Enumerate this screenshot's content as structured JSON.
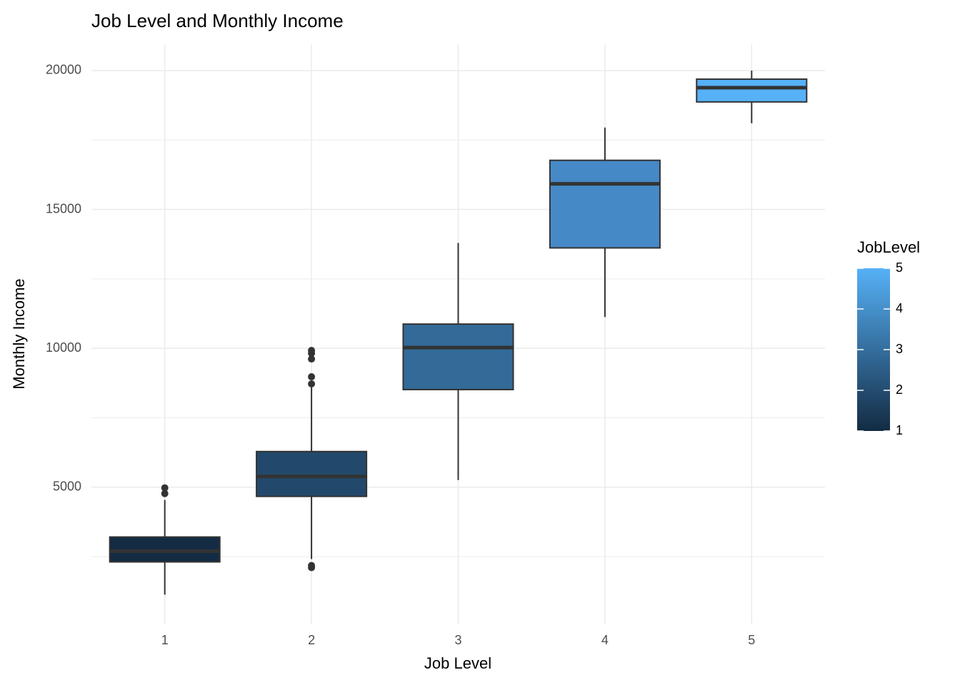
{
  "chart_data": {
    "type": "box",
    "title": "Job Level and Monthly Income",
    "x_label": "Job Level",
    "y_label": "Monthly Income",
    "categories": [
      "1",
      "2",
      "3",
      "4",
      "5"
    ],
    "boxes": [
      {
        "color": "#132b43",
        "whisker_low": 1128,
        "q1": 2308,
        "median": 2692,
        "q3": 3205,
        "whisker_high": 4538,
        "outliers": [
          4974,
          4769
        ]
      },
      {
        "color": "#22496b",
        "whisker_low": 2410,
        "q1": 4667,
        "median": 5385,
        "q3": 6282,
        "whisker_high": 8600,
        "outliers": [
          2179,
          2103,
          8718,
          8974,
          9923,
          9821,
          9615
        ]
      },
      {
        "color": "#336a98",
        "whisker_low": 5256,
        "q1": 8513,
        "median": 10026,
        "q3": 10872,
        "whisker_high": 13795,
        "outliers": []
      },
      {
        "color": "#4589c6",
        "whisker_low": 11128,
        "q1": 13615,
        "median": 15923,
        "q3": 16769,
        "whisker_high": 17949,
        "outliers": []
      },
      {
        "color": "#56b1f7",
        "whisker_low": 18103,
        "q1": 18872,
        "median": 19385,
        "q3": 19692,
        "whisker_high": 19999,
        "outliers": []
      }
    ],
    "ylim": [
      59,
      20949
    ],
    "yticks": [
      5000,
      10000,
      15000,
      20000
    ],
    "minor_yticks": [
      2500,
      7500,
      12500,
      17500
    ],
    "grid": true,
    "legend": {
      "title": "JobLevel",
      "lim": [
        1,
        5
      ],
      "ticks": [
        1,
        2,
        3,
        4,
        5
      ],
      "low": "#132b43",
      "high": "#56b1f7"
    }
  }
}
